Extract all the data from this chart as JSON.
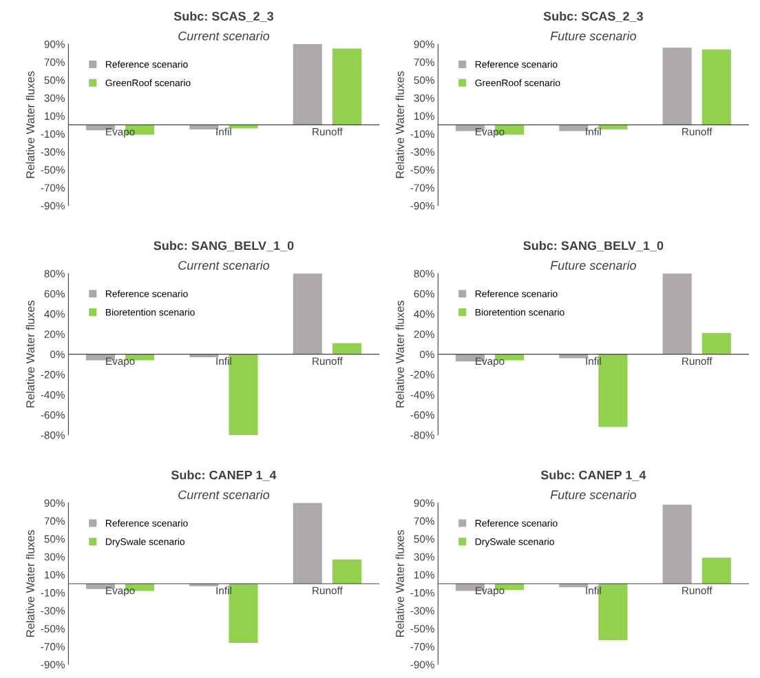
{
  "chart_data": [
    {
      "type": "bar",
      "title": "Subc: SCAS_2_3",
      "subtitle": "Current scenario",
      "ylabel": "Relative Water fluxes",
      "categories": [
        "Evapo",
        "Infil",
        "Runoff"
      ],
      "legend": "top left",
      "grid": false,
      "ylim": [
        -90,
        90
      ],
      "yticks": [
        {
          "value": -90,
          "label": "-90%"
        },
        {
          "value": -70,
          "label": "-70%"
        },
        {
          "value": -50,
          "label": "-50%"
        },
        {
          "value": -30,
          "label": "-30%"
        },
        {
          "value": -10,
          "label": "-10%"
        },
        {
          "value": 10,
          "label": "10%"
        },
        {
          "value": 30,
          "label": "30%"
        },
        {
          "value": 50,
          "label": "50%"
        },
        {
          "value": 70,
          "label": "70%"
        },
        {
          "value": 90,
          "label": "90%"
        }
      ],
      "series": [
        {
          "name": "Reference scenario",
          "color": "#aeaaaa",
          "values": [
            -6,
            -5,
            90
          ]
        },
        {
          "name": "GreenRoof scenario",
          "color": "#92d050",
          "values": [
            -11,
            -4,
            85
          ]
        }
      ]
    },
    {
      "type": "bar",
      "title": "Subc: SCAS_2_3",
      "subtitle": "Future scenario",
      "ylabel": "Relative Water fluxes",
      "categories": [
        "Evapo",
        "Infil",
        "Runoff"
      ],
      "legend": "top left",
      "grid": false,
      "ylim": [
        -90,
        90
      ],
      "yticks": [
        {
          "value": -90,
          "label": "-90%"
        },
        {
          "value": -70,
          "label": "-70%"
        },
        {
          "value": -50,
          "label": "-50%"
        },
        {
          "value": -30,
          "label": "-30%"
        },
        {
          "value": -10,
          "label": "-10%"
        },
        {
          "value": 10,
          "label": "10%"
        },
        {
          "value": 30,
          "label": "30%"
        },
        {
          "value": 50,
          "label": "50%"
        },
        {
          "value": 70,
          "label": "70%"
        },
        {
          "value": 90,
          "label": "90%"
        }
      ],
      "series": [
        {
          "name": "Reference scenario",
          "color": "#aeaaaa",
          "values": [
            -7,
            -7,
            86
          ]
        },
        {
          "name": "GreenRoof scenario",
          "color": "#92d050",
          "values": [
            -11,
            -5,
            84
          ]
        }
      ]
    },
    {
      "type": "bar",
      "title": "Subc: SANG_BELV_1_0",
      "subtitle": "Current scenario",
      "ylabel": "Relative Water fluxes",
      "categories": [
        "Evapo",
        "Infil",
        "Runoff"
      ],
      "legend": "top left",
      "grid": false,
      "ylim": [
        -80,
        80
      ],
      "yticks": [
        {
          "value": -80,
          "label": "-80%"
        },
        {
          "value": -60,
          "label": "-60%"
        },
        {
          "value": -40,
          "label": "-40%"
        },
        {
          "value": -20,
          "label": "-20%"
        },
        {
          "value": 0,
          "label": "0%"
        },
        {
          "value": 20,
          "label": "20%"
        },
        {
          "value": 40,
          "label": "40%"
        },
        {
          "value": 60,
          "label": "60%"
        },
        {
          "value": 80,
          "label": "80%"
        }
      ],
      "series": [
        {
          "name": "Reference scenario",
          "color": "#aeaaaa",
          "values": [
            -6,
            -3,
            80
          ]
        },
        {
          "name": "Bioretention scenario",
          "color": "#92d050",
          "values": [
            -6,
            -80,
            11
          ]
        }
      ]
    },
    {
      "type": "bar",
      "title": "Subc: SANG_BELV_1_0",
      "subtitle": "Future scenario",
      "ylabel": "Relative Water fluxes",
      "categories": [
        "Evapo",
        "Infil",
        "Runoff"
      ],
      "legend": "top left",
      "grid": false,
      "ylim": [
        -80,
        80
      ],
      "yticks": [
        {
          "value": -80,
          "label": "-80%"
        },
        {
          "value": -60,
          "label": "-60%"
        },
        {
          "value": -40,
          "label": "-40%"
        },
        {
          "value": -20,
          "label": "-20%"
        },
        {
          "value": 0,
          "label": "0%"
        },
        {
          "value": 20,
          "label": "20%"
        },
        {
          "value": 40,
          "label": "40%"
        },
        {
          "value": 60,
          "label": "60%"
        },
        {
          "value": 80,
          "label": "80%"
        }
      ],
      "series": [
        {
          "name": "Reference scenario",
          "color": "#aeaaaa",
          "values": [
            -7,
            -4,
            80
          ]
        },
        {
          "name": "Bioretention scenario",
          "color": "#92d050",
          "values": [
            -6,
            -72,
            21
          ]
        }
      ]
    },
    {
      "type": "bar",
      "title": "Subc: CANEP 1_4",
      "subtitle": "Current scenario",
      "ylabel": "Relative Water fluxes",
      "categories": [
        "Evapo",
        "Infil",
        "Runoff"
      ],
      "legend": "top left",
      "grid": false,
      "ylim": [
        -90,
        90
      ],
      "yticks": [
        {
          "value": -90,
          "label": "-90%"
        },
        {
          "value": -70,
          "label": "-70%"
        },
        {
          "value": -50,
          "label": "-50%"
        },
        {
          "value": -30,
          "label": "-30%"
        },
        {
          "value": -10,
          "label": "-10%"
        },
        {
          "value": 10,
          "label": "10%"
        },
        {
          "value": 30,
          "label": "30%"
        },
        {
          "value": 50,
          "label": "50%"
        },
        {
          "value": 70,
          "label": "70%"
        },
        {
          "value": 90,
          "label": "90%"
        }
      ],
      "series": [
        {
          "name": "Reference scenario",
          "color": "#aeaaaa",
          "values": [
            -6,
            -3,
            90
          ]
        },
        {
          "name": "DrySwale scenario",
          "color": "#92d050",
          "values": [
            -8,
            -66,
            27
          ]
        }
      ]
    },
    {
      "type": "bar",
      "title": "Subc: CANEP 1_4",
      "subtitle": "Future scenario",
      "ylabel": "Relative Water fluxes",
      "categories": [
        "Evapo",
        "Infil",
        "Runoff"
      ],
      "legend": "top left",
      "grid": false,
      "ylim": [
        -90,
        90
      ],
      "yticks": [
        {
          "value": -90,
          "label": "-90%"
        },
        {
          "value": -70,
          "label": "-70%"
        },
        {
          "value": -50,
          "label": "-50%"
        },
        {
          "value": -30,
          "label": "-30%"
        },
        {
          "value": -10,
          "label": "-10%"
        },
        {
          "value": 10,
          "label": "10%"
        },
        {
          "value": 30,
          "label": "30%"
        },
        {
          "value": 50,
          "label": "50%"
        },
        {
          "value": 70,
          "label": "70%"
        },
        {
          "value": 90,
          "label": "90%"
        }
      ],
      "series": [
        {
          "name": "Reference scenario",
          "color": "#aeaaaa",
          "values": [
            -8,
            -4,
            88
          ]
        },
        {
          "name": "DrySwale scenario",
          "color": "#92d050",
          "values": [
            -7,
            -63,
            29
          ]
        }
      ]
    }
  ]
}
